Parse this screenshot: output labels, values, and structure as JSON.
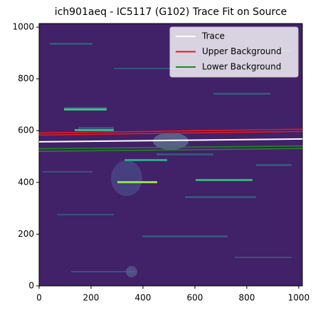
{
  "chart_data": {
    "type": "line",
    "title": "ich901aeq - IC5117 (G102) Trace Fit on Source",
    "xlim": [
      0,
      1014
    ],
    "ylim": [
      0,
      1014
    ],
    "xticks": [
      0,
      200,
      400,
      600,
      800,
      1000
    ],
    "yticks": [
      0,
      200,
      400,
      600,
      800,
      1000
    ],
    "legend": "upper right",
    "series": [
      {
        "name": "Trace",
        "color": "#ffffff",
        "x": [
          0,
          1014
        ],
        "values": [
          557,
          568
        ]
      },
      {
        "name": "Upper Background",
        "color": "#e8191c",
        "x": [
          0,
          1014,
          null,
          0,
          1014
        ],
        "values": [
          583,
          597,
          null,
          591,
          606
        ]
      },
      {
        "name": "Lower Background",
        "color": "#1f8a1f",
        "x": [
          0,
          1014,
          null,
          0,
          1014
        ],
        "values": [
          520,
          531,
          null,
          530,
          541
        ]
      }
    ]
  }
}
